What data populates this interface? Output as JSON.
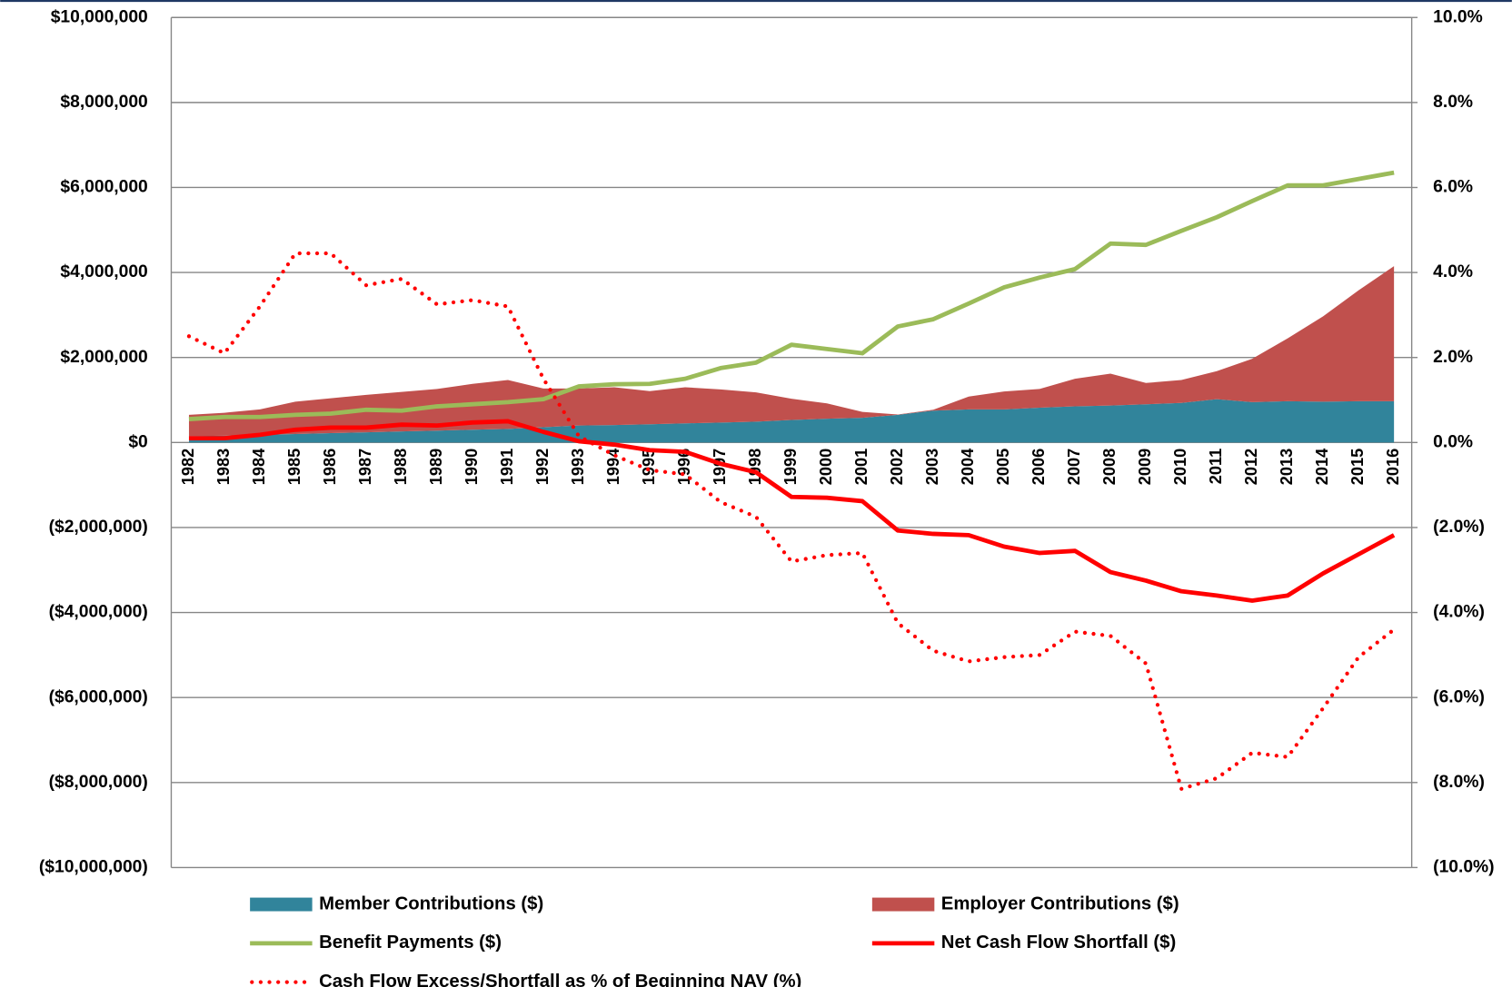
{
  "chart_data": {
    "type": "combo",
    "categories": [
      "1982",
      "1983",
      "1984",
      "1985",
      "1986",
      "1987",
      "1988",
      "1989",
      "1990",
      "1991",
      "1992",
      "1993",
      "1994",
      "1995",
      "1996",
      "1997",
      "1998",
      "1999",
      "2000",
      "2001",
      "2002",
      "2003",
      "2004",
      "2005",
      "2006",
      "2007",
      "2008",
      "2009",
      "2010",
      "2011",
      "2012",
      "2013",
      "2014",
      "2015",
      "2016"
    ],
    "series": [
      {
        "name": "Member Contributions ($)",
        "type": "area",
        "color": "#31849b",
        "values": [
          150000,
          160000,
          180000,
          200000,
          220000,
          240000,
          260000,
          280000,
          300000,
          320000,
          360000,
          400000,
          410000,
          430000,
          450000,
          470000,
          490000,
          530000,
          560000,
          580000,
          650000,
          750000,
          780000,
          780000,
          820000,
          850000,
          870000,
          900000,
          930000,
          1020000,
          950000,
          970000,
          960000,
          970000,
          970000
        ]
      },
      {
        "name": "Employer Contributions ($)",
        "type": "area",
        "color": "#c0504d",
        "values": [
          500000,
          540000,
          600000,
          760000,
          820000,
          880000,
          930000,
          980000,
          1080000,
          1150000,
          910000,
          870000,
          890000,
          780000,
          850000,
          780000,
          690000,
          500000,
          360000,
          140000,
          10000,
          20000,
          300000,
          420000,
          440000,
          650000,
          750000,
          500000,
          540000,
          660000,
          1020000,
          1480000,
          2010000,
          2610000,
          3180000
        ]
      },
      {
        "name": "Benefit Payments ($)",
        "type": "line",
        "color": "#9bbb59",
        "values": [
          550000,
          600000,
          600000,
          650000,
          680000,
          770000,
          750000,
          850000,
          900000,
          950000,
          1020000,
          1320000,
          1370000,
          1380000,
          1500000,
          1750000,
          1880000,
          2300000,
          2200000,
          2100000,
          2730000,
          2900000,
          3270000,
          3650000,
          3880000,
          4080000,
          4680000,
          4650000,
          4980000,
          5300000,
          5680000,
          6050000,
          6050000,
          6200000,
          6350000
        ]
      },
      {
        "name": "Net Cash Flow Shortfall ($)",
        "type": "line",
        "color": "#ff0000",
        "values": [
          100000,
          100000,
          180000,
          300000,
          350000,
          350000,
          420000,
          400000,
          470000,
          500000,
          250000,
          30000,
          -50000,
          -180000,
          -220000,
          -500000,
          -700000,
          -1280000,
          -1300000,
          -1380000,
          -2070000,
          -2150000,
          -2180000,
          -2450000,
          -2600000,
          -2550000,
          -3050000,
          -3250000,
          -3500000,
          -3600000,
          -3720000,
          -3600000,
          -3080000,
          -2630000,
          -2180000
        ]
      },
      {
        "name": "Cash Flow Excess/Shortfall as % of Beginning NAV (%)",
        "type": "line",
        "dashed": true,
        "axis": "y2",
        "color": "#ff0000",
        "values": [
          2.5,
          2.1,
          3.2,
          4.45,
          4.45,
          3.7,
          3.85,
          3.25,
          3.35,
          3.2,
          1.5,
          0.15,
          -0.3,
          -0.65,
          -0.75,
          -1.4,
          -1.75,
          -2.8,
          -2.65,
          -2.6,
          -4.25,
          -4.9,
          -5.15,
          -5.05,
          -5,
          -4.45,
          -4.55,
          -5.2,
          -8.15,
          -7.9,
          -7.3,
          -7.4,
          -6.25,
          -5.05,
          -4.4
        ]
      }
    ],
    "ylim": [
      -10000000,
      10000000
    ],
    "yticks": [
      {
        "value": -10000000,
        "label": "($10,000,000)"
      },
      {
        "value": -8000000,
        "label": "($8,000,000)"
      },
      {
        "value": -6000000,
        "label": "($6,000,000)"
      },
      {
        "value": -4000000,
        "label": "($4,000,000)"
      },
      {
        "value": -2000000,
        "label": "($2,000,000)"
      },
      {
        "value": 0,
        "label": "$0"
      },
      {
        "value": 2000000,
        "label": "$2,000,000"
      },
      {
        "value": 4000000,
        "label": "$4,000,000"
      },
      {
        "value": 6000000,
        "label": "$6,000,000"
      },
      {
        "value": 8000000,
        "label": "$8,000,000"
      },
      {
        "value": 10000000,
        "label": "$10,000,000"
      }
    ],
    "y2lim": [
      -10,
      10
    ],
    "y2ticks": [
      {
        "value": -10,
        "label": "(10.0%)"
      },
      {
        "value": -8,
        "label": "(8.0%)"
      },
      {
        "value": -6,
        "label": "(6.0%)"
      },
      {
        "value": -4,
        "label": "(4.0%)"
      },
      {
        "value": -2,
        "label": "(2.0%)"
      },
      {
        "value": 0,
        "label": "0.0%"
      },
      {
        "value": 2,
        "label": "2.0%"
      },
      {
        "value": 4,
        "label": "4.0%"
      },
      {
        "value": 6,
        "label": "6.0%"
      },
      {
        "value": 8,
        "label": "8.0%"
      },
      {
        "value": 10,
        "label": "10.0%"
      }
    ],
    "negative_tick_color": "#ff0000",
    "grid": true,
    "legend": "bottom"
  }
}
